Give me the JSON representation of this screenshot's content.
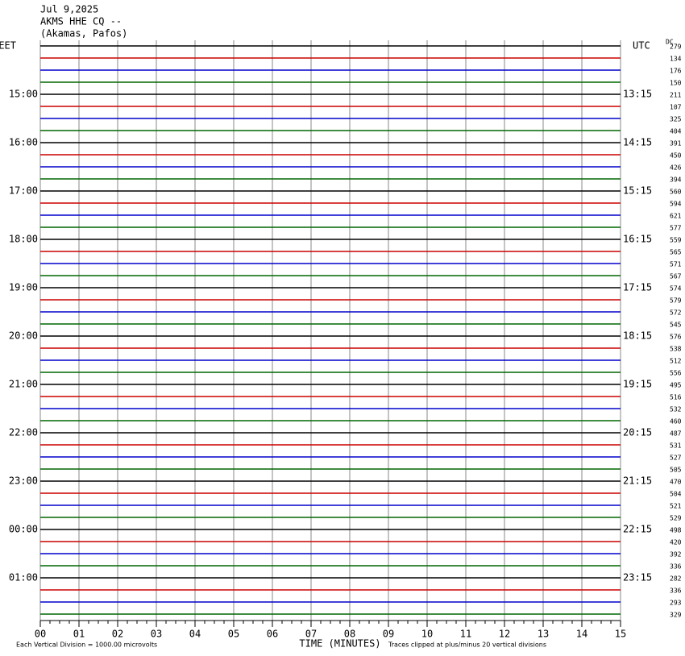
{
  "chart_data": {
    "type": "helicorder",
    "title_lines": [
      "Jul 9,2025",
      "AKMS HHE CQ --",
      "(Akamas, Pafos)"
    ],
    "dc_header": "DC",
    "xlabel": "TIME (MINUTES)",
    "footer_left": "Each Vertical Division = 1000.00 microvolts",
    "footer_right": "Traces clipped at plus/minus 20 vertical divisions",
    "xlim": [
      0,
      15
    ],
    "xticks": [
      {
        "value": 0,
        "label": "00"
      },
      {
        "value": 1,
        "label": "01"
      },
      {
        "value": 2,
        "label": "02"
      },
      {
        "value": 3,
        "label": "03"
      },
      {
        "value": 4,
        "label": "04"
      },
      {
        "value": 5,
        "label": "05"
      },
      {
        "value": 6,
        "label": "06"
      },
      {
        "value": 7,
        "label": "07"
      },
      {
        "value": 8,
        "label": "08"
      },
      {
        "value": 9,
        "label": "09"
      },
      {
        "value": 10,
        "label": "10"
      },
      {
        "value": 11,
        "label": "11"
      },
      {
        "value": 12,
        "label": "12"
      },
      {
        "value": 13,
        "label": "13"
      },
      {
        "value": 14,
        "label": "14"
      },
      {
        "value": 15,
        "label": "15"
      }
    ],
    "grid": true,
    "trace_colors": [
      "#000000",
      "#cc0000",
      "#0000cc",
      "#006600"
    ],
    "left_labels": [
      "EET",
      null,
      null,
      null,
      "15:00",
      null,
      null,
      null,
      "16:00",
      null,
      null,
      null,
      "17:00",
      null,
      null,
      null,
      "18:00",
      null,
      null,
      null,
      "19:00",
      null,
      null,
      null,
      "20:00",
      null,
      null,
      null,
      "21:00",
      null,
      null,
      null,
      "22:00",
      null,
      null,
      null,
      "23:00",
      null,
      null,
      null,
      "00:00",
      null,
      null,
      null,
      "01:00",
      null,
      null,
      null
    ],
    "right_labels": [
      "UTC",
      null,
      null,
      null,
      "13:15",
      null,
      null,
      null,
      "14:15",
      null,
      null,
      null,
      "15:15",
      null,
      null,
      null,
      "16:15",
      null,
      null,
      null,
      "17:15",
      null,
      null,
      null,
      "18:15",
      null,
      null,
      null,
      "19:15",
      null,
      null,
      null,
      "20:15",
      null,
      null,
      null,
      "21:15",
      null,
      null,
      null,
      "22:15",
      null,
      null,
      null,
      "23:15",
      null,
      null,
      null
    ],
    "dc": [
      279,
      134,
      176,
      150,
      211,
      107,
      325,
      404,
      391,
      450,
      426,
      394,
      560,
      594,
      621,
      577,
      559,
      565,
      571,
      567,
      574,
      579,
      572,
      545,
      576,
      538,
      512,
      556,
      495,
      516,
      532,
      460,
      487,
      531,
      527,
      505,
      470,
      504,
      521,
      529,
      498,
      420,
      392,
      336,
      282,
      336,
      293,
      329
    ]
  }
}
